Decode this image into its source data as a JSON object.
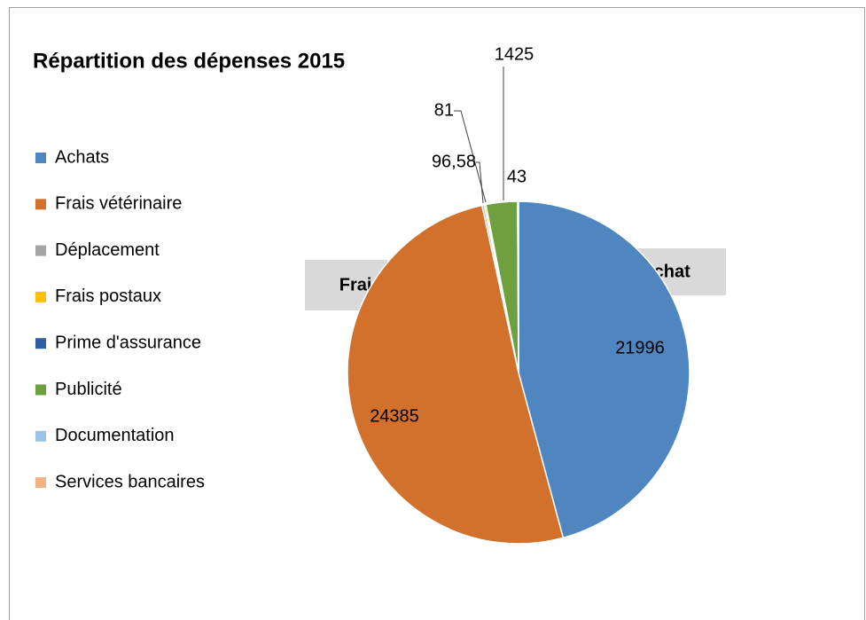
{
  "chart_data": {
    "type": "pie",
    "title": "Répartition des dépenses 2015",
    "categories": [
      "Achats",
      "Frais vétérinaire",
      "Déplacement",
      "Frais postaux",
      "Prime d'assurance",
      "Publicité",
      "Documentation",
      "Services bancaires"
    ],
    "values": [
      21996,
      24385,
      96.58,
      81,
      0,
      1425,
      43,
      0
    ],
    "value_labels": [
      "21996",
      "24385",
      "96,58",
      "81",
      null,
      "1425",
      "43",
      null
    ],
    "colors": [
      "#4f86c0",
      "#d2712c",
      "#a5a5a5",
      "#ffc000",
      "#2f5ea6",
      "#6fa03f",
      "#9dc3e6",
      "#f4b183"
    ],
    "annotations": [
      "Frais véto",
      "Achat"
    ],
    "legend": "left"
  }
}
